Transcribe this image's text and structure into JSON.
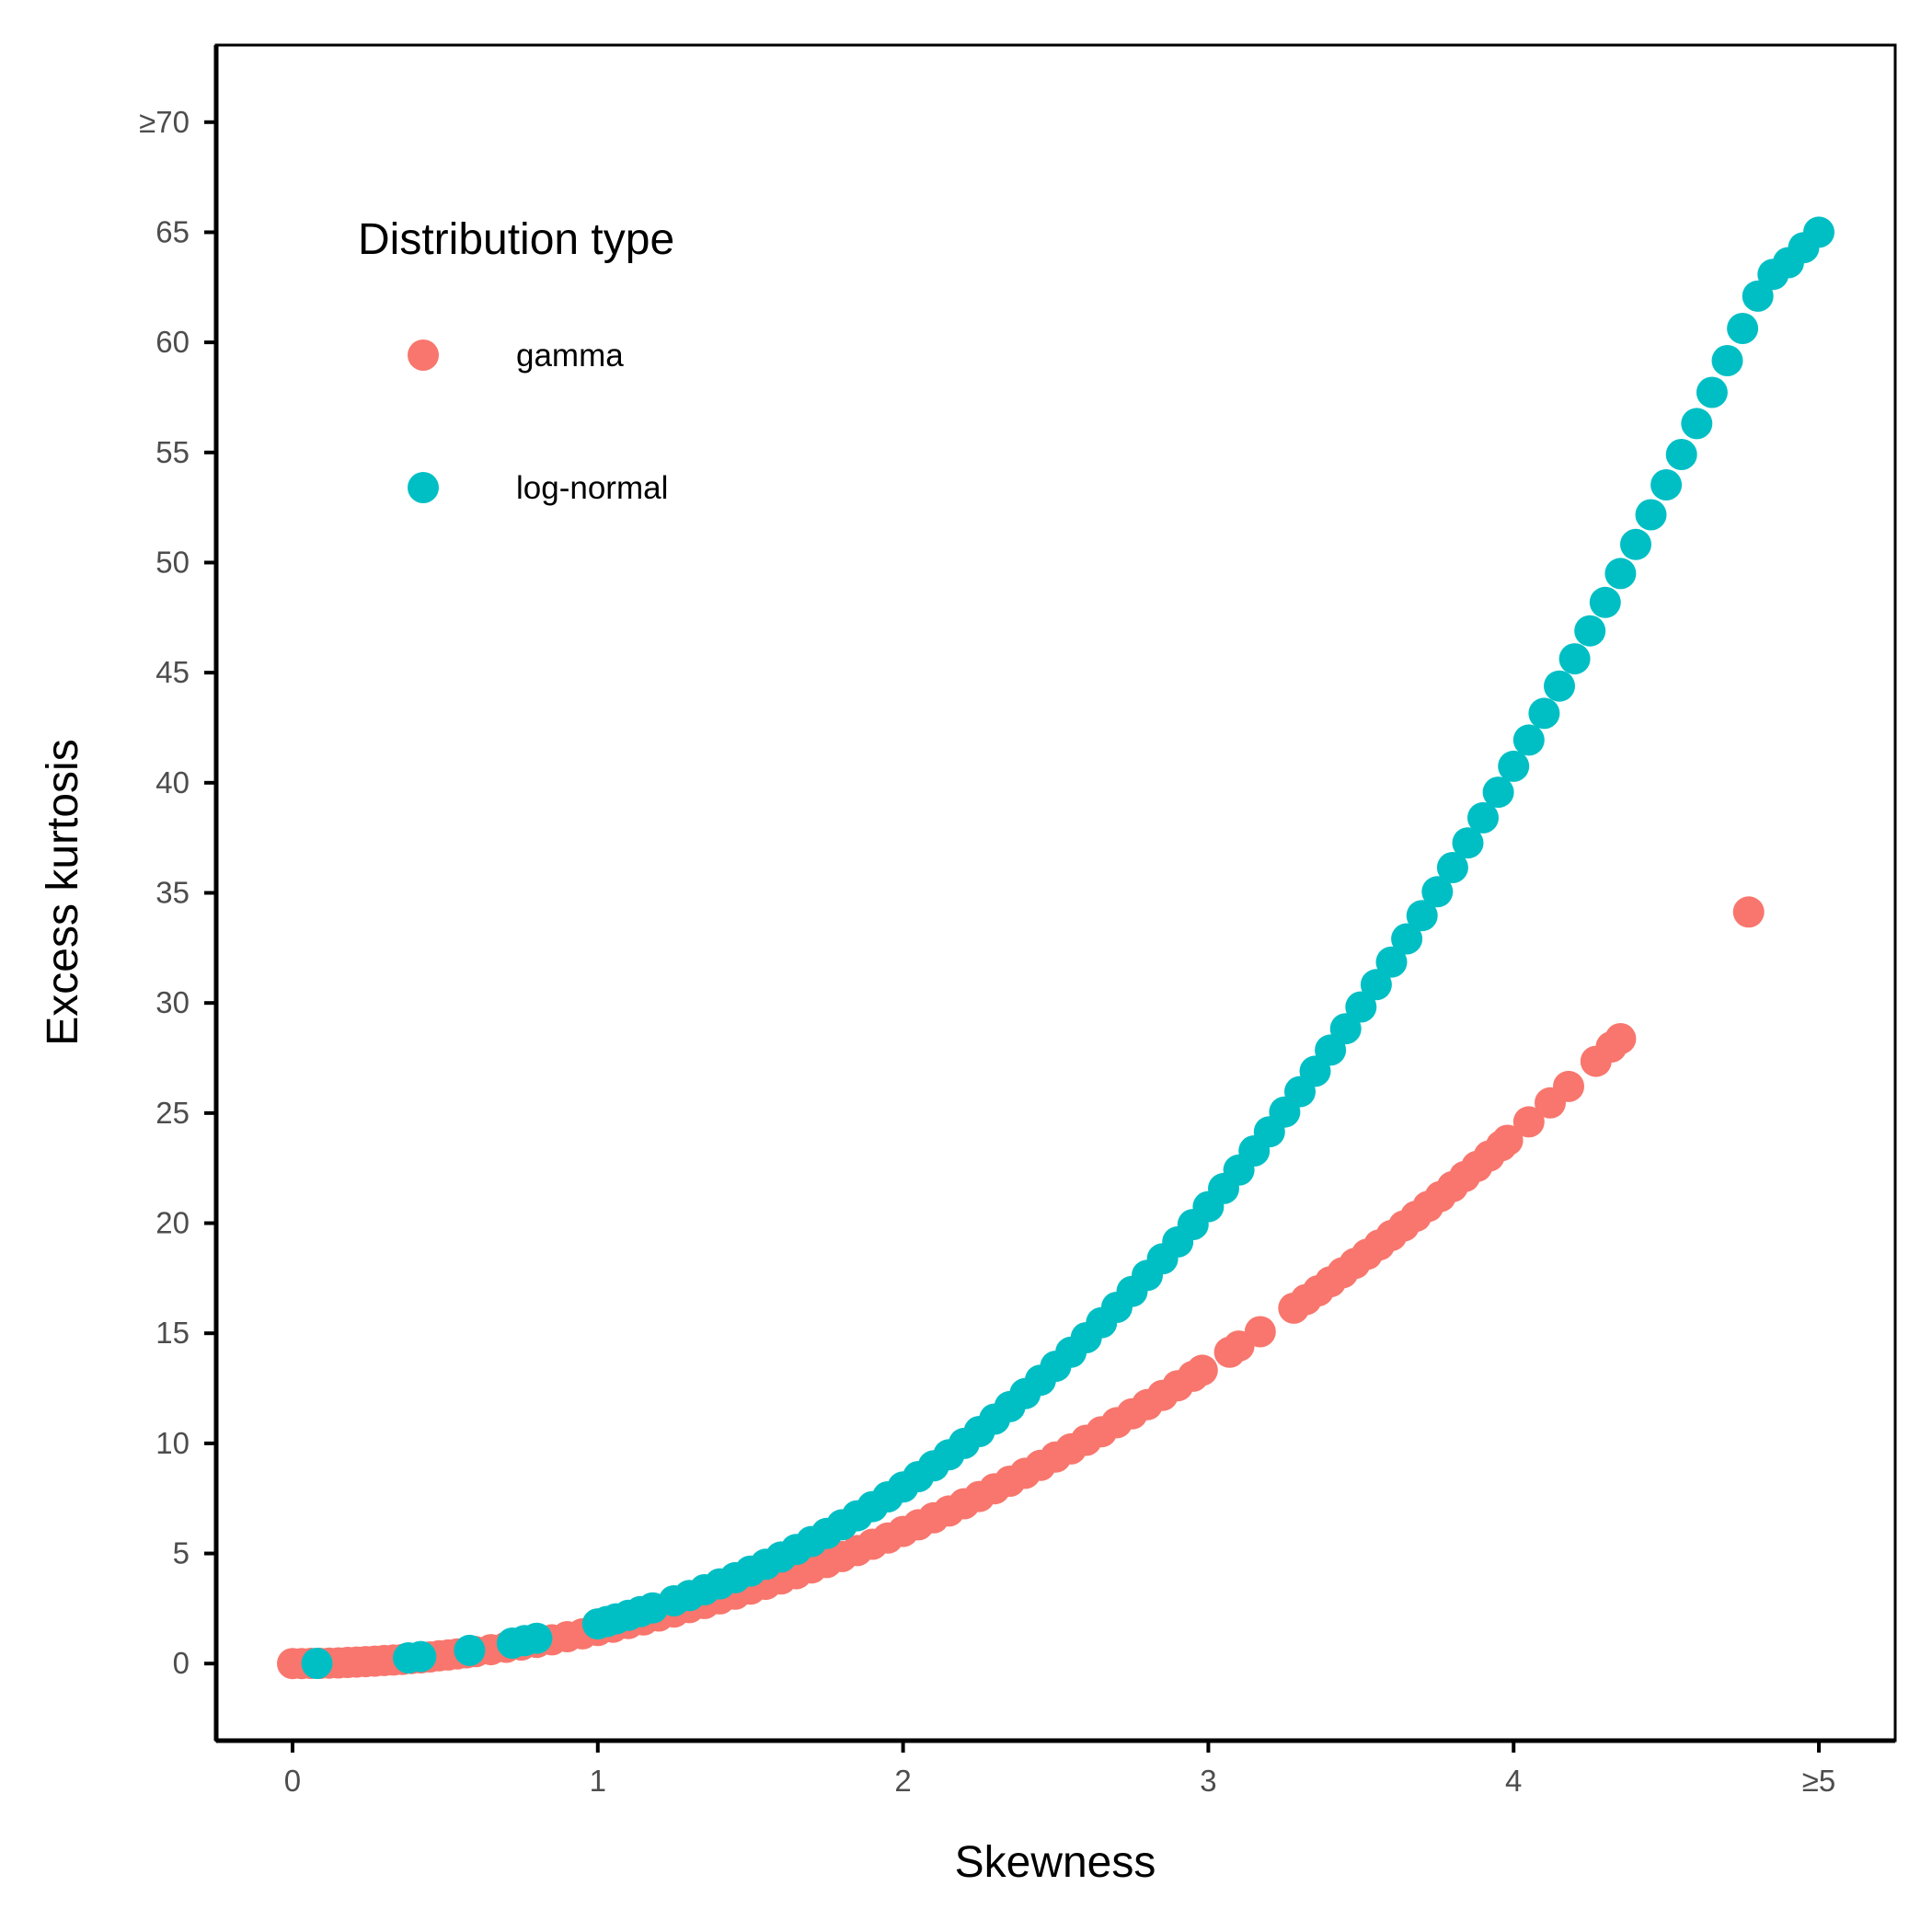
{
  "chart_data": {
    "type": "scatter",
    "xlabel": "Skewness",
    "ylabel": "Excess kurtosis",
    "xlim": [
      -0.25,
      5.25
    ],
    "ylim": [
      -3.5,
      73.5
    ],
    "x_ticks": [
      {
        "value": 0,
        "label": "0"
      },
      {
        "value": 1,
        "label": "1"
      },
      {
        "value": 2,
        "label": "2"
      },
      {
        "value": 3,
        "label": "3"
      },
      {
        "value": 4,
        "label": "4"
      },
      {
        "value": 5,
        "label": "≥5"
      }
    ],
    "y_ticks": [
      {
        "value": 0,
        "label": "0"
      },
      {
        "value": 5,
        "label": "5"
      },
      {
        "value": 10,
        "label": "10"
      },
      {
        "value": 15,
        "label": "15"
      },
      {
        "value": 20,
        "label": "20"
      },
      {
        "value": 25,
        "label": "25"
      },
      {
        "value": 30,
        "label": "30"
      },
      {
        "value": 35,
        "label": "35"
      },
      {
        "value": 40,
        "label": "40"
      },
      {
        "value": 45,
        "label": "45"
      },
      {
        "value": 50,
        "label": "50"
      },
      {
        "value": 55,
        "label": "55"
      },
      {
        "value": 60,
        "label": "60"
      },
      {
        "value": 65,
        "label": "65"
      },
      {
        "value": 70,
        "label": "≥70"
      }
    ],
    "grid": false,
    "legend": {
      "title": "Distribution type",
      "placement": "top-left inside"
    },
    "series": [
      {
        "name": "gamma",
        "color": "#F8766D",
        "points": [
          [
            0,
            0
          ],
          [
            0.03,
            0.0
          ],
          [
            0.06,
            0.01
          ],
          [
            0.09,
            0.01
          ],
          [
            0.12,
            0.02
          ],
          [
            0.15,
            0.03
          ],
          [
            0.18,
            0.05
          ],
          [
            0.21,
            0.07
          ],
          [
            0.24,
            0.09
          ],
          [
            0.27,
            0.11
          ],
          [
            0.3,
            0.14
          ],
          [
            0.33,
            0.16
          ],
          [
            0.36,
            0.19
          ],
          [
            0.39,
            0.23
          ],
          [
            0.42,
            0.26
          ],
          [
            0.45,
            0.3
          ],
          [
            0.48,
            0.35
          ],
          [
            0.51,
            0.39
          ],
          [
            0.54,
            0.44
          ],
          [
            0.57,
            0.49
          ],
          [
            0.6,
            0.54
          ],
          [
            0.65,
            0.63
          ],
          [
            0.7,
            0.74
          ],
          [
            0.75,
            0.84
          ],
          [
            0.8,
            0.96
          ],
          [
            0.85,
            1.08
          ],
          [
            0.9,
            1.22
          ],
          [
            0.95,
            1.35
          ],
          [
            1.0,
            1.5
          ],
          [
            1.05,
            1.65
          ],
          [
            1.1,
            1.82
          ],
          [
            1.15,
            1.98
          ],
          [
            1.2,
            2.16
          ],
          [
            1.25,
            2.34
          ],
          [
            1.3,
            2.54
          ],
          [
            1.35,
            2.73
          ],
          [
            1.4,
            2.94
          ],
          [
            1.45,
            3.15
          ],
          [
            1.5,
            3.38
          ],
          [
            1.55,
            3.6
          ],
          [
            1.6,
            3.84
          ],
          [
            1.65,
            4.08
          ],
          [
            1.7,
            4.34
          ],
          [
            1.75,
            4.59
          ],
          [
            1.8,
            4.86
          ],
          [
            1.85,
            5.13
          ],
          [
            1.9,
            5.42
          ],
          [
            1.95,
            5.7
          ],
          [
            2.0,
            6.0
          ],
          [
            2.05,
            6.3
          ],
          [
            2.1,
            6.62
          ],
          [
            2.15,
            6.93
          ],
          [
            2.2,
            7.26
          ],
          [
            2.25,
            7.59
          ],
          [
            2.3,
            7.94
          ],
          [
            2.35,
            8.28
          ],
          [
            2.4,
            8.64
          ],
          [
            2.45,
            9.0
          ],
          [
            2.5,
            9.38
          ],
          [
            2.55,
            9.75
          ],
          [
            2.6,
            10.14
          ],
          [
            2.65,
            10.53
          ],
          [
            2.7,
            10.94
          ],
          [
            2.75,
            11.34
          ],
          [
            2.8,
            11.76
          ],
          [
            2.85,
            12.18
          ],
          [
            2.9,
            12.62
          ],
          [
            2.95,
            13.05
          ],
          [
            2.98,
            13.32
          ],
          [
            3.07,
            14.14
          ],
          [
            3.1,
            14.42
          ],
          [
            3.17,
            15.07
          ],
          [
            3.28,
            16.14
          ],
          [
            3.32,
            16.53
          ],
          [
            3.36,
            16.93
          ],
          [
            3.4,
            17.34
          ],
          [
            3.44,
            17.75
          ],
          [
            3.48,
            18.17
          ],
          [
            3.52,
            18.59
          ],
          [
            3.56,
            19.01
          ],
          [
            3.6,
            19.44
          ],
          [
            3.64,
            19.87
          ],
          [
            3.68,
            20.31
          ],
          [
            3.72,
            20.76
          ],
          [
            3.76,
            21.21
          ],
          [
            3.8,
            21.66
          ],
          [
            3.84,
            22.12
          ],
          [
            3.88,
            22.58
          ],
          [
            3.92,
            23.05
          ],
          [
            3.96,
            23.52
          ],
          [
            3.98,
            23.76
          ],
          [
            4.05,
            24.6
          ],
          [
            4.12,
            25.46
          ],
          [
            4.18,
            26.21
          ],
          [
            4.27,
            27.35
          ],
          [
            4.32,
            28.0
          ],
          [
            4.35,
            28.38
          ],
          [
            4.77,
            34.13
          ]
        ]
      },
      {
        "name": "log-normal",
        "color": "#00BFC4",
        "points": [
          [
            0.08,
            0.01
          ],
          [
            0.38,
            0.26
          ],
          [
            0.42,
            0.32
          ],
          [
            0.58,
            0.6
          ],
          [
            0.72,
            0.93
          ],
          [
            0.76,
            1.04
          ],
          [
            0.8,
            1.15
          ],
          [
            1.0,
            1.8
          ],
          [
            1.03,
            1.91
          ],
          [
            1.06,
            2.03
          ],
          [
            1.1,
            2.19
          ],
          [
            1.14,
            2.36
          ],
          [
            1.18,
            2.53
          ],
          [
            1.25,
            2.85
          ],
          [
            1.3,
            3.09
          ],
          [
            1.35,
            3.35
          ],
          [
            1.4,
            3.62
          ],
          [
            1.45,
            3.9
          ],
          [
            1.5,
            4.2
          ],
          [
            1.55,
            4.51
          ],
          [
            1.6,
            4.84
          ],
          [
            1.65,
            5.18
          ],
          [
            1.7,
            5.54
          ],
          [
            1.75,
            5.91
          ],
          [
            1.8,
            6.3
          ],
          [
            1.85,
            6.71
          ],
          [
            1.9,
            7.13
          ],
          [
            1.95,
            7.57
          ],
          [
            2.0,
            8.02
          ],
          [
            2.05,
            8.49
          ],
          [
            2.1,
            8.98
          ],
          [
            2.15,
            9.48
          ],
          [
            2.2,
            10.0
          ],
          [
            2.25,
            10.54
          ],
          [
            2.3,
            11.1
          ],
          [
            2.35,
            11.67
          ],
          [
            2.4,
            12.26
          ],
          [
            2.45,
            12.87
          ],
          [
            2.5,
            13.5
          ],
          [
            2.55,
            14.14
          ],
          [
            2.6,
            14.8
          ],
          [
            2.65,
            15.48
          ],
          [
            2.7,
            16.18
          ],
          [
            2.75,
            16.9
          ],
          [
            2.8,
            17.63
          ],
          [
            2.85,
            18.38
          ],
          [
            2.9,
            19.15
          ],
          [
            2.95,
            19.94
          ],
          [
            3.0,
            20.75
          ],
          [
            3.05,
            21.57
          ],
          [
            3.1,
            22.41
          ],
          [
            3.15,
            23.28
          ],
          [
            3.2,
            24.15
          ],
          [
            3.25,
            25.05
          ],
          [
            3.3,
            25.97
          ],
          [
            3.35,
            26.9
          ],
          [
            3.4,
            27.86
          ],
          [
            3.45,
            28.83
          ],
          [
            3.5,
            29.82
          ],
          [
            3.55,
            30.83
          ],
          [
            3.6,
            31.86
          ],
          [
            3.65,
            32.91
          ],
          [
            3.7,
            33.97
          ],
          [
            3.75,
            35.05
          ],
          [
            3.8,
            36.15
          ],
          [
            3.85,
            37.27
          ],
          [
            3.9,
            38.41
          ],
          [
            3.95,
            39.57
          ],
          [
            4.0,
            40.75
          ],
          [
            4.05,
            41.94
          ],
          [
            4.1,
            43.15
          ],
          [
            4.15,
            44.39
          ],
          [
            4.2,
            45.63
          ],
          [
            4.25,
            46.9
          ],
          [
            4.3,
            48.19
          ],
          [
            4.35,
            49.5
          ],
          [
            4.4,
            50.82
          ],
          [
            4.45,
            52.17
          ],
          [
            4.5,
            53.53
          ],
          [
            4.55,
            54.91
          ],
          [
            4.6,
            56.31
          ],
          [
            4.65,
            57.73
          ],
          [
            4.7,
            59.17
          ],
          [
            4.75,
            60.63
          ],
          [
            4.8,
            62.1
          ],
          [
            4.85,
            63.09
          ],
          [
            4.9,
            63.62
          ],
          [
            4.95,
            64.3
          ],
          [
            5.0,
            65.0
          ]
        ]
      }
    ]
  }
}
